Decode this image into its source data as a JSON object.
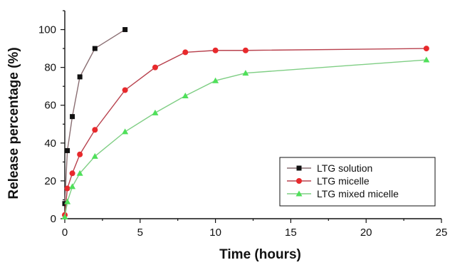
{
  "chart_data": {
    "type": "line",
    "title": "",
    "xlabel": "Time (hours)",
    "ylabel": "Release percentage (%)",
    "xlim": [
      0,
      25
    ],
    "ylim": [
      0,
      110
    ],
    "xticks": [
      0,
      5,
      10,
      15,
      20,
      25
    ],
    "yticks": [
      0,
      20,
      40,
      60,
      80,
      100
    ],
    "grid": false,
    "legend_position": "bottom-right",
    "series": [
      {
        "name": "LTG solution",
        "color": "#111111",
        "line_color": "#8a6e72",
        "marker": "square",
        "x": [
          0,
          0.17,
          0.5,
          1,
          2,
          4
        ],
        "y": [
          8,
          36,
          54,
          75,
          90,
          100
        ]
      },
      {
        "name": "LTG micelle",
        "color": "#e8292c",
        "line_color": "#b8424e",
        "marker": "circle",
        "x": [
          0,
          0.17,
          0.5,
          1,
          2,
          4,
          6,
          8,
          10,
          12,
          24
        ],
        "y": [
          2,
          16,
          24,
          34,
          47,
          68,
          80,
          88,
          89,
          89,
          90
        ]
      },
      {
        "name": "LTG mixed micelle",
        "color": "#4fe05a",
        "line_color": "#7fce84",
        "marker": "triangle",
        "x": [
          0,
          0.17,
          0.5,
          1,
          2,
          4,
          6,
          8,
          10,
          12,
          24
        ],
        "y": [
          1,
          9,
          17,
          24,
          33,
          46,
          56,
          65,
          73,
          77,
          84
        ]
      }
    ]
  }
}
